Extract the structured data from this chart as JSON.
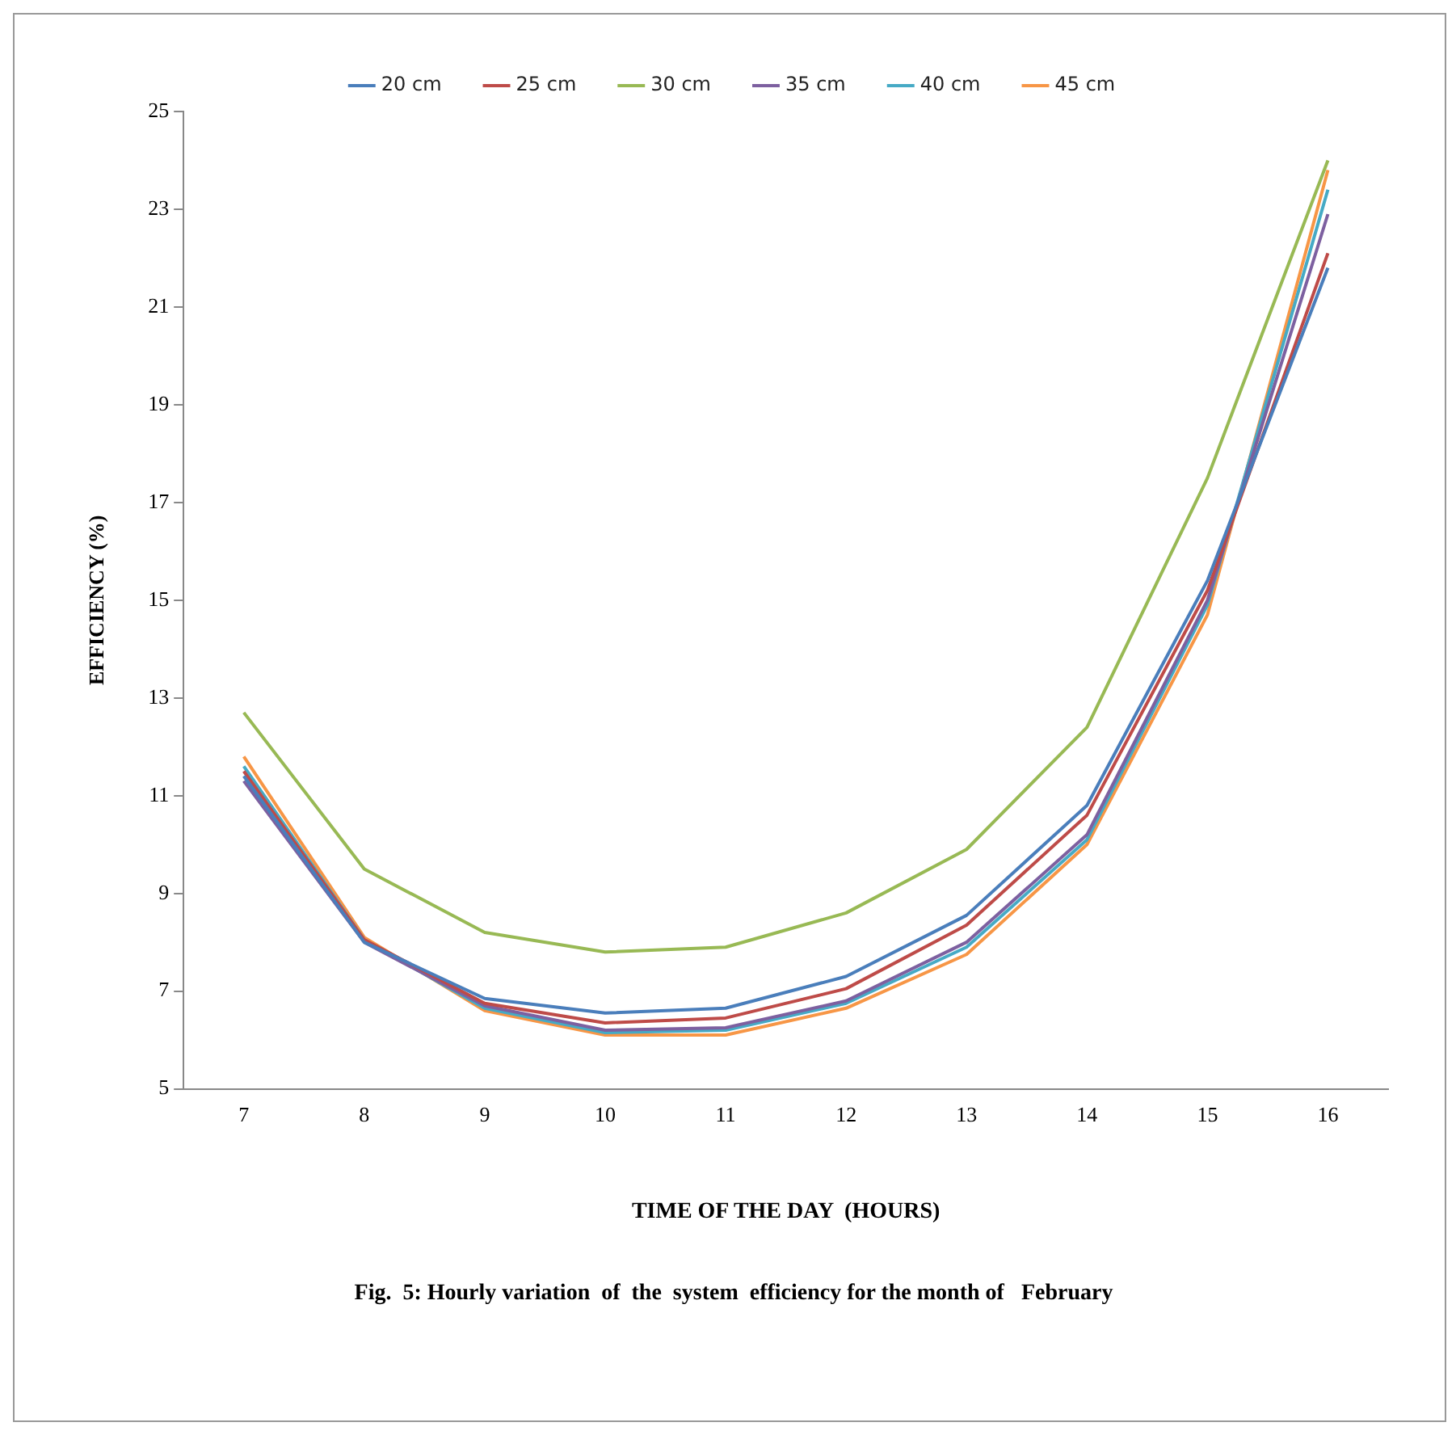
{
  "chart_data": {
    "type": "line",
    "title": "Fig.  5: Hourly variation  of  the  system  efficiency for the month of   February",
    "xlabel": "TIME OF THE DAY  (HOURS)",
    "ylabel": "EFFICIENCY (%)",
    "categories": [
      "7",
      "8",
      "9",
      "10",
      "11",
      "12",
      "13",
      "14",
      "15",
      "16"
    ],
    "ylim": [
      5,
      25
    ],
    "yticks": [
      5,
      7,
      9,
      11,
      13,
      15,
      17,
      19,
      21,
      23,
      25
    ],
    "grid": false,
    "legend": "top",
    "marker": "none",
    "line_style": "solid",
    "series": [
      {
        "name": "20 cm",
        "color": "#4a7ebb",
        "values": [
          11.4,
          8.0,
          6.85,
          6.55,
          6.65,
          7.3,
          8.55,
          10.8,
          15.4,
          21.8
        ]
      },
      {
        "name": "25 cm",
        "color": "#be4b48",
        "values": [
          11.5,
          8.05,
          6.75,
          6.35,
          6.45,
          7.05,
          8.35,
          10.6,
          15.2,
          22.1
        ]
      },
      {
        "name": "30 cm",
        "color": "#98b954",
        "values": [
          12.7,
          9.5,
          8.2,
          7.8,
          7.9,
          8.6,
          9.9,
          12.4,
          17.5,
          24.0
        ]
      },
      {
        "name": "35 cm",
        "color": "#7d60a0",
        "values": [
          11.3,
          8.0,
          6.7,
          6.2,
          6.25,
          6.8,
          8.0,
          10.2,
          15.0,
          22.9
        ]
      },
      {
        "name": "40 cm",
        "color": "#46aac5",
        "values": [
          11.6,
          8.05,
          6.65,
          6.15,
          6.2,
          6.75,
          7.9,
          10.1,
          14.9,
          23.4
        ]
      },
      {
        "name": "45 cm",
        "color": "#f79646",
        "values": [
          11.8,
          8.1,
          6.6,
          6.1,
          6.1,
          6.65,
          7.75,
          10.0,
          14.7,
          23.8
        ]
      }
    ]
  }
}
